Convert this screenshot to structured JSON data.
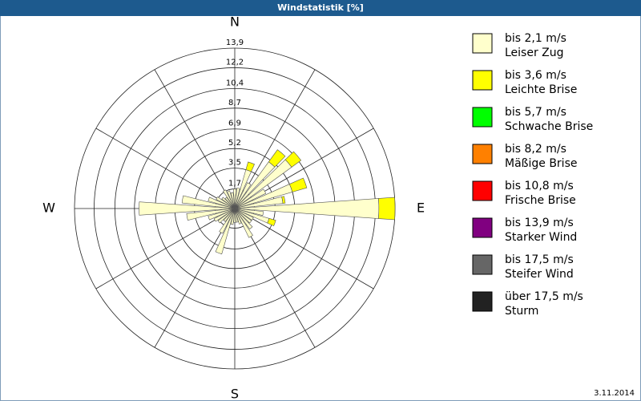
{
  "chart_data": {
    "type": "windrose",
    "title": "Windstatistik [%]",
    "footer": "3.11.2014",
    "categories": [
      "N",
      null,
      null,
      null,
      null,
      null,
      null,
      null,
      null,
      "E",
      null,
      null,
      null,
      null,
      null,
      null,
      null,
      null,
      "S",
      null,
      null,
      null,
      null,
      null,
      null,
      null,
      null,
      "W",
      null,
      null,
      null,
      null,
      null,
      null,
      null,
      null
    ],
    "rlim": [
      0,
      13.9
    ],
    "rticks": [
      {
        "value": 1.7,
        "label": "1,7"
      },
      {
        "value": 3.5,
        "label": "3,5"
      },
      {
        "value": 5.2,
        "label": "5,2"
      },
      {
        "value": 6.9,
        "label": "6,9"
      },
      {
        "value": 8.7,
        "label": "8,7"
      },
      {
        "value": 10.4,
        "label": "10,4"
      },
      {
        "value": 12.2,
        "label": "12,2"
      },
      {
        "value": 13.9,
        "label": "13,9"
      }
    ],
    "grid": true,
    "series": [
      {
        "name": "bis 2,1 m/s",
        "description": "Leiser Zug",
        "color": "#ffffcc",
        "values": [
          1.7,
          1.8,
          3.5,
          2.5,
          5.0,
          6.1,
          3.0,
          5.2,
          4.2,
          12.5,
          2.5,
          3.1,
          1.8,
          1.8,
          2.2,
          2.8,
          1.4,
          1.2,
          1.2,
          1.4,
          4.1,
          2.4,
          1.4,
          1.8,
          2.0,
          2.4,
          4.2,
          8.3,
          4.6,
          2.4,
          1.8,
          1.4,
          1.2,
          1.8,
          1.6,
          1.4
        ]
      },
      {
        "name": "bis 3,6 m/s",
        "description": "Leichte Brise",
        "color": "#ffff00",
        "values": [
          0,
          0,
          0.7,
          0,
          1.3,
          1.0,
          0,
          1.3,
          0.2,
          1.4,
          0,
          0.6,
          0,
          0,
          0,
          0,
          0,
          0,
          0,
          0,
          0,
          0,
          0,
          0,
          0,
          0,
          0,
          0,
          0,
          0,
          0,
          0,
          0,
          0,
          0,
          0
        ]
      },
      {
        "name": "bis 5,7 m/s",
        "description": "Schwache Brise",
        "color": "#00ff00",
        "values": [
          0,
          0,
          0,
          0,
          0,
          0,
          0,
          0,
          0,
          0,
          0,
          0,
          0,
          0,
          0,
          0,
          0,
          0,
          0,
          0,
          0,
          0,
          0,
          0,
          0,
          0,
          0,
          0,
          0,
          0,
          0,
          0,
          0,
          0,
          0,
          0
        ]
      },
      {
        "name": "bis 8,2 m/s",
        "description": "Mäßige Brise",
        "color": "#ff8000",
        "values": [
          0,
          0,
          0,
          0,
          0,
          0,
          0,
          0,
          0,
          0,
          0,
          0,
          0,
          0,
          0,
          0,
          0,
          0,
          0,
          0,
          0,
          0,
          0,
          0,
          0,
          0,
          0,
          0,
          0,
          0,
          0,
          0,
          0,
          0,
          0,
          0
        ]
      },
      {
        "name": "bis 10,8 m/s",
        "description": "Frische Brise",
        "color": "#ff0000",
        "values": [
          0,
          0,
          0,
          0,
          0,
          0,
          0,
          0,
          0,
          0,
          0,
          0,
          0,
          0,
          0,
          0,
          0,
          0,
          0,
          0,
          0,
          0,
          0,
          0,
          0,
          0,
          0,
          0,
          0,
          0,
          0,
          0,
          0,
          0,
          0,
          0
        ]
      },
      {
        "name": "bis 13,9 m/s",
        "description": "Starker Wind",
        "color": "#800080",
        "values": [
          0,
          0,
          0,
          0,
          0,
          0,
          0,
          0,
          0,
          0,
          0,
          0,
          0,
          0,
          0,
          0,
          0,
          0,
          0,
          0,
          0,
          0,
          0,
          0,
          0,
          0,
          0,
          0,
          0,
          0,
          0,
          0,
          0,
          0,
          0,
          0
        ]
      },
      {
        "name": "bis 17,5 m/s",
        "description": "Steifer Wind",
        "color": "#666666",
        "values": [
          0,
          0,
          0,
          0,
          0,
          0,
          0,
          0,
          0,
          0,
          0,
          0,
          0,
          0,
          0,
          0,
          0,
          0,
          0,
          0,
          0,
          0,
          0,
          0,
          0,
          0,
          0,
          0,
          0,
          0,
          0,
          0,
          0,
          0,
          0,
          0
        ]
      },
      {
        "name": "über 17,5 m/s",
        "description": "Sturm",
        "color": "#222222",
        "values": [
          0,
          0,
          0,
          0,
          0,
          0,
          0,
          0,
          0,
          0,
          0,
          0,
          0,
          0,
          0,
          0,
          0,
          0,
          0,
          0,
          0,
          0,
          0,
          0,
          0,
          0,
          0,
          0,
          0,
          0,
          0,
          0,
          0,
          0,
          0,
          0
        ]
      }
    ]
  }
}
